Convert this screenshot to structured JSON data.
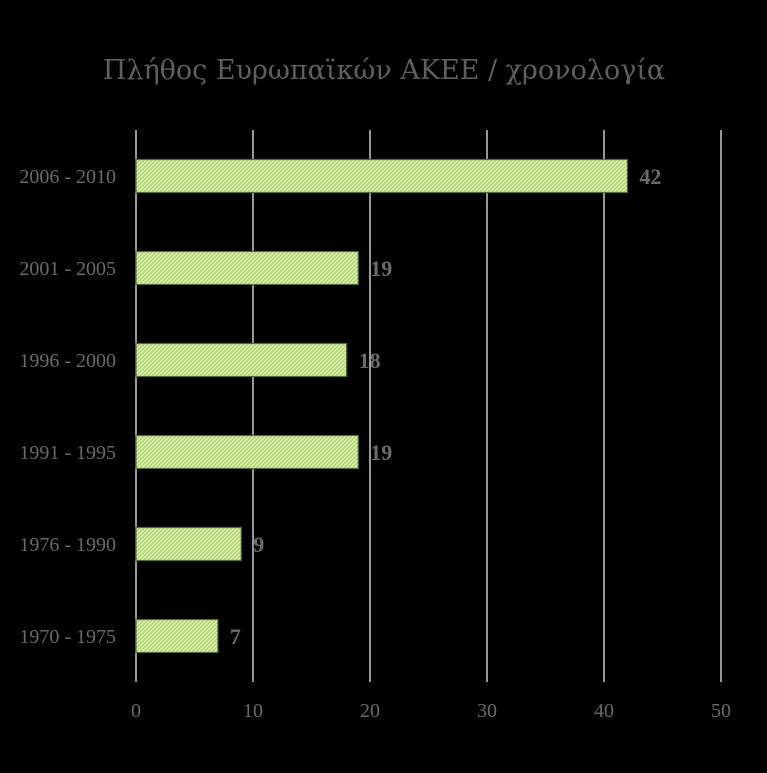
{
  "chart_data": {
    "type": "bar",
    "orientation": "horizontal",
    "title": "Πλήθος Ευρωπαϊκών ΑΚΕΕ / χρονολογία",
    "categories": [
      "2006 - 2010",
      "2001 - 2005",
      "1996 - 2000",
      "1991 - 1995",
      "1976 - 1990",
      "1970 - 1975"
    ],
    "values": [
      42,
      19,
      18,
      19,
      9,
      7
    ],
    "xlabel": "",
    "ylabel": "",
    "xlim": [
      0,
      50
    ],
    "xticks": [
      0,
      10,
      20,
      30,
      40,
      50
    ],
    "grid": true,
    "data_labels": true,
    "bar_color": "#d6ef9f",
    "bar_pattern": "diagonal-hatch",
    "background": "#000000"
  }
}
